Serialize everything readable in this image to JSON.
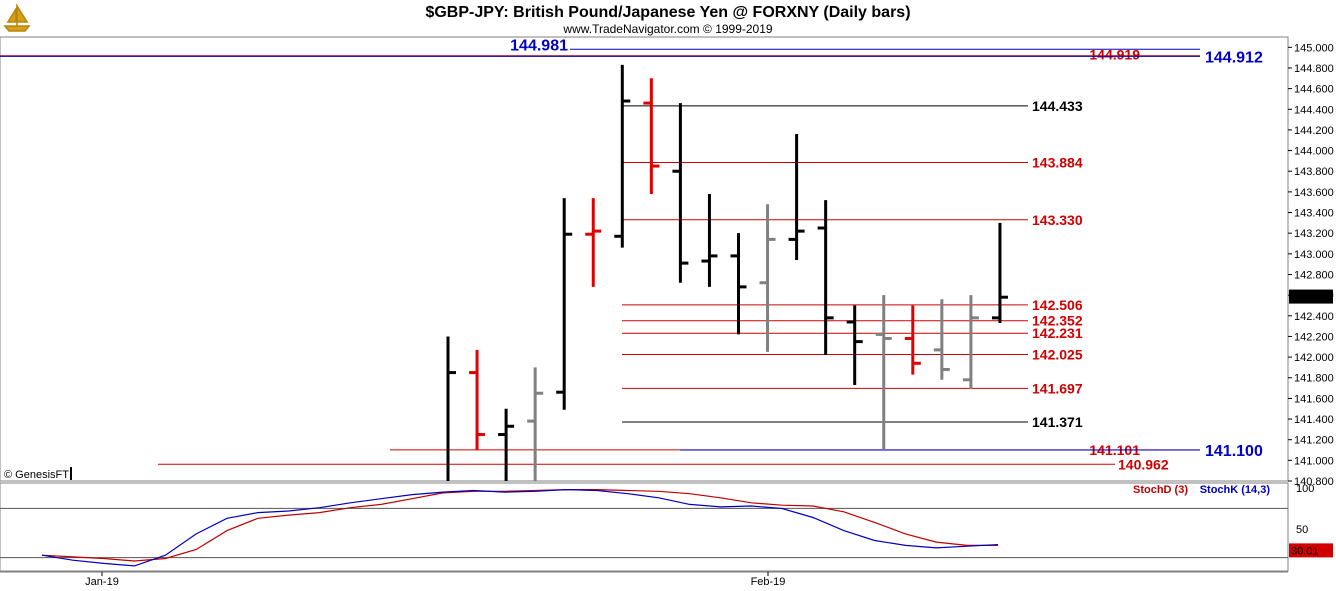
{
  "header": {
    "title": "$GBP-JPY:  British Pound/Japanese Yen @ FORXNY  (Daily bars)",
    "subtitle": "www.TradeNavigator.com © 1999-2019",
    "logo_icon": "sailboat-logo-icon"
  },
  "copyright": "© GenesisFT",
  "colors": {
    "black": "#000000",
    "red": "#e00000",
    "gray": "#808080",
    "blue": "#0000c8",
    "level_red": "#d00000",
    "level_black": "#000000",
    "stochD": "#c00000",
    "stochK": "#0000c0"
  },
  "chart_data": [
    {
      "type": "ohlc",
      "ylim": [
        140.8,
        145.1
      ],
      "yticks": [
        "140.800",
        "141.000",
        "141.200",
        "141.400",
        "141.600",
        "141.800",
        "142.000",
        "142.200",
        "142.400",
        "142.600",
        "142.800",
        "143.000",
        "143.200",
        "143.400",
        "143.600",
        "143.800",
        "144.000",
        "144.200",
        "144.400",
        "144.600",
        "144.800",
        "145.000"
      ],
      "last_price_label": "142.586",
      "x_labels": [
        {
          "text": "Jan-19",
          "bar": 0.5
        },
        {
          "text": "Feb-19",
          "bar": 22.5
        }
      ],
      "bars": [
        {
          "o": 140.7,
          "h": 142.2,
          "l": 140.7,
          "c": 141.85,
          "color": "black"
        },
        {
          "o": 141.85,
          "h": 142.07,
          "l": 141.1,
          "c": 141.25,
          "color": "red"
        },
        {
          "o": 141.25,
          "h": 141.5,
          "l": 140.7,
          "c": 141.33,
          "color": "black"
        },
        {
          "o": 141.38,
          "h": 141.9,
          "l": 140.7,
          "c": 141.65,
          "color": "gray"
        },
        {
          "o": 141.66,
          "h": 143.54,
          "l": 141.49,
          "c": 143.19,
          "color": "black"
        },
        {
          "o": 143.19,
          "h": 143.54,
          "l": 142.68,
          "c": 143.22,
          "color": "red"
        },
        {
          "o": 143.17,
          "h": 144.83,
          "l": 143.06,
          "c": 144.48,
          "color": "black"
        },
        {
          "o": 144.46,
          "h": 144.7,
          "l": 143.58,
          "c": 143.85,
          "color": "red"
        },
        {
          "o": 143.8,
          "h": 144.46,
          "l": 142.72,
          "c": 142.91,
          "color": "black"
        },
        {
          "o": 142.93,
          "h": 143.58,
          "l": 142.68,
          "c": 142.98,
          "color": "black"
        },
        {
          "o": 142.98,
          "h": 143.2,
          "l": 142.22,
          "c": 142.68,
          "color": "black"
        },
        {
          "o": 142.72,
          "h": 143.48,
          "l": 142.05,
          "c": 143.14,
          "color": "gray"
        },
        {
          "o": 143.14,
          "h": 144.16,
          "l": 142.94,
          "c": 143.22,
          "color": "black"
        },
        {
          "o": 143.25,
          "h": 143.52,
          "l": 142.02,
          "c": 142.38,
          "color": "black"
        },
        {
          "o": 142.34,
          "h": 142.5,
          "l": 141.73,
          "c": 142.15,
          "color": "black"
        },
        {
          "o": 142.22,
          "h": 142.6,
          "l": 141.11,
          "c": 142.18,
          "color": "gray"
        },
        {
          "o": 142.18,
          "h": 142.5,
          "l": 141.83,
          "c": 141.94,
          "color": "red"
        },
        {
          "o": 142.07,
          "h": 142.56,
          "l": 141.78,
          "c": 141.88,
          "color": "gray"
        },
        {
          "o": 141.78,
          "h": 142.6,
          "l": 141.69,
          "c": 142.38,
          "color": "gray"
        },
        {
          "o": 142.38,
          "h": 143.3,
          "l": 142.33,
          "c": 142.58,
          "color": "black"
        }
      ],
      "levels": [
        {
          "value": 144.981,
          "label": "144.981",
          "color": "blue",
          "label_pos": "left",
          "big": true
        },
        {
          "value": 144.919,
          "label": "144.919",
          "color": "red",
          "label_pos": "right"
        },
        {
          "value": 144.912,
          "label": "144.912",
          "color": "blue",
          "label_pos": "axis",
          "big": true
        },
        {
          "value": 144.433,
          "label": "144.433",
          "color": "black",
          "label_pos": "mid"
        },
        {
          "value": 143.884,
          "label": "143.884",
          "color": "red",
          "label_pos": "mid"
        },
        {
          "value": 143.33,
          "label": "143.330",
          "color": "red",
          "label_pos": "mid"
        },
        {
          "value": 142.506,
          "label": "142.506",
          "color": "red",
          "label_pos": "mid"
        },
        {
          "value": 142.352,
          "label": "142.352",
          "color": "red",
          "label_pos": "mid"
        },
        {
          "value": 142.231,
          "label": "142.231",
          "color": "red",
          "label_pos": "mid"
        },
        {
          "value": 142.025,
          "label": "142.025",
          "color": "red",
          "label_pos": "mid"
        },
        {
          "value": 141.697,
          "label": "141.697",
          "color": "red",
          "label_pos": "mid"
        },
        {
          "value": 141.371,
          "label": "141.371",
          "color": "black",
          "label_pos": "mid"
        },
        {
          "value": 141.101,
          "label": "141.101",
          "color": "red",
          "label_pos": "right"
        },
        {
          "value": 141.1,
          "label": "141.100",
          "color": "blue",
          "label_pos": "axis",
          "big": true
        },
        {
          "value": 140.962,
          "label": "140.962",
          "color": "red",
          "label_pos": "right2"
        }
      ]
    },
    {
      "type": "line",
      "ylim": [
        0,
        100
      ],
      "yticks": [
        "100",
        "50"
      ],
      "hlines": [
        80,
        20
      ],
      "last_value_label": "30.01",
      "series": [
        {
          "name": "StochD (3)",
          "color": "stochD",
          "values": [
            18,
            16,
            14,
            11,
            14,
            25,
            48,
            63,
            67,
            70,
            76,
            80,
            87,
            94,
            96,
            96,
            97,
            98,
            98,
            97,
            96,
            93,
            88,
            82,
            79,
            78,
            71,
            58,
            44,
            34,
            30,
            30
          ]
        },
        {
          "name": "StochK (14,3)",
          "color": "stochK",
          "values": [
            18,
            12,
            8,
            5,
            18,
            44,
            63,
            70,
            72,
            76,
            82,
            87,
            92,
            95,
            97,
            95,
            96,
            98,
            97,
            93,
            88,
            80,
            77,
            78,
            75,
            64,
            48,
            36,
            30,
            27,
            29,
            31
          ]
        }
      ]
    }
  ]
}
